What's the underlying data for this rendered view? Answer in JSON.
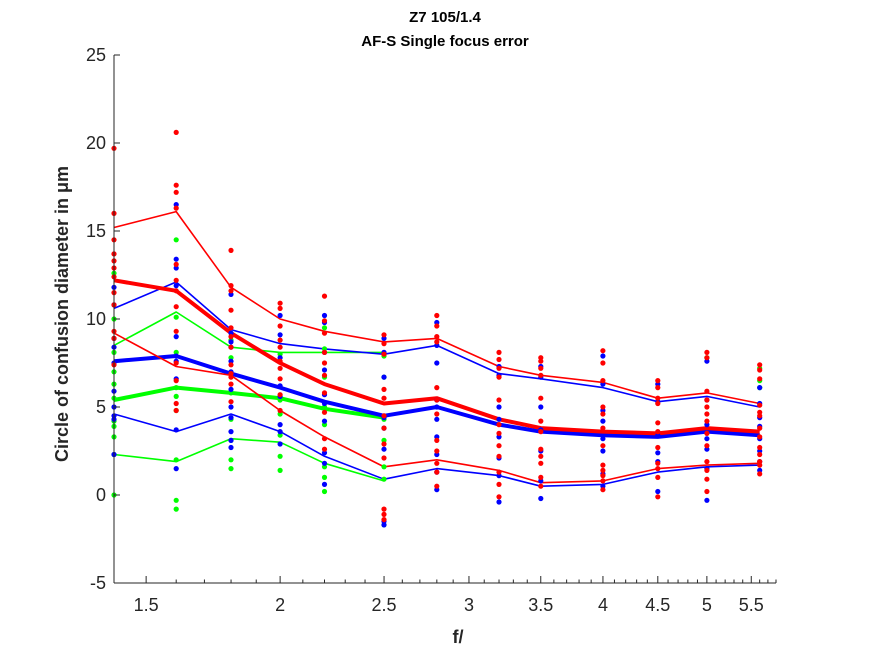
{
  "chart_data": {
    "type": "line",
    "title": "Z7 105/1.4",
    "subtitle": "AF-S Single focus error",
    "xlabel": "f/",
    "ylabel": "Circle of confusion diameter in μm",
    "xscale": "log",
    "xlim": [
      1.4,
      5.8
    ],
    "ylim": [
      -5,
      25
    ],
    "xticks": [
      "1.5",
      "2",
      "2.5",
      "3",
      "3.5",
      "4",
      "4.5",
      "5",
      "5.5"
    ],
    "yticks": [
      "-5",
      "0",
      "5",
      "10",
      "15",
      "20",
      "25"
    ],
    "colors": {
      "red": "#ff0000",
      "blue": "#0000ff",
      "green": "#00ff00"
    },
    "x": [
      1.4,
      1.6,
      1.8,
      2.0,
      2.2,
      2.5,
      2.8,
      3.2,
      3.5,
      4.0,
      4.5,
      5.0,
      5.6
    ],
    "series": [
      {
        "color": "red",
        "style": "mean",
        "values": [
          12.2,
          11.6,
          9.2,
          7.5,
          6.3,
          5.2,
          5.5,
          4.3,
          3.8,
          3.6,
          3.5,
          3.8,
          3.6
        ]
      },
      {
        "color": "red",
        "style": "upper",
        "values": [
          15.2,
          16.1,
          11.8,
          10.0,
          9.3,
          8.7,
          8.9,
          7.3,
          6.8,
          6.4,
          5.5,
          5.8,
          5.2
        ]
      },
      {
        "color": "red",
        "style": "lower",
        "values": [
          9.2,
          7.3,
          6.8,
          4.8,
          3.3,
          1.6,
          2.0,
          1.4,
          0.7,
          0.8,
          1.5,
          1.7,
          1.8
        ]
      },
      {
        "color": "blue",
        "style": "mean",
        "values": [
          7.6,
          7.9,
          6.9,
          6.1,
          5.3,
          4.5,
          5.0,
          4.0,
          3.6,
          3.4,
          3.3,
          3.6,
          3.4
        ]
      },
      {
        "color": "blue",
        "style": "upper",
        "values": [
          10.6,
          12.1,
          9.4,
          8.6,
          8.3,
          8.0,
          8.5,
          6.9,
          6.6,
          6.1,
          5.3,
          5.6,
          5.0
        ]
      },
      {
        "color": "blue",
        "style": "lower",
        "values": [
          4.6,
          3.6,
          4.6,
          3.6,
          2.2,
          0.9,
          1.5,
          1.1,
          0.5,
          0.6,
          1.3,
          1.6,
          1.7
        ]
      },
      {
        "color": "green",
        "style": "mean",
        "values": [
          5.4,
          6.1,
          5.8,
          5.5,
          4.9,
          4.4,
          null,
          null,
          null,
          null,
          null,
          null,
          null
        ]
      },
      {
        "color": "green",
        "style": "upper",
        "values": [
          8.5,
          10.4,
          8.4,
          8.1,
          8.1,
          8.1,
          null,
          null,
          null,
          null,
          null,
          null,
          null
        ]
      },
      {
        "color": "green",
        "style": "lower",
        "values": [
          2.3,
          1.9,
          3.2,
          3.0,
          1.8,
          0.8,
          null,
          null,
          null,
          null,
          null,
          null,
          null
        ]
      }
    ],
    "points": [
      {
        "x": 1.4,
        "red": [
          19.7,
          16.0,
          14.5,
          13.7,
          13.3,
          12.9,
          12.4,
          11.5,
          10.8,
          9.3,
          8.9,
          7.4
        ],
        "blue": [
          11.8,
          10.8,
          8.9,
          8.4,
          7.5,
          5.9,
          5.0,
          4.5,
          4.3,
          2.3
        ],
        "green": [
          12.6,
          10.0,
          8.1,
          7.0,
          6.3,
          5.5,
          4.2,
          3.9,
          3.3,
          2.3,
          0.0
        ]
      },
      {
        "x": 1.6,
        "red": [
          20.6,
          17.6,
          17.2,
          16.3,
          13.1,
          12.2,
          11.6,
          10.7,
          9.3,
          7.5,
          6.5,
          5.2,
          4.8
        ],
        "blue": [
          16.5,
          13.4,
          12.9,
          11.9,
          9.0,
          7.9,
          7.6,
          6.6,
          3.7,
          1.5
        ],
        "green": [
          14.5,
          10.1,
          8.1,
          6.1,
          5.6,
          4.8,
          2.0,
          -0.3,
          -0.8
        ]
      },
      {
        "x": 1.8,
        "red": [
          13.9,
          11.9,
          11.6,
          10.5,
          9.5,
          9.0,
          8.4,
          7.4,
          6.9,
          6.7,
          6.3,
          5.3
        ],
        "blue": [
          11.4,
          9.2,
          8.7,
          8.4,
          7.6,
          7.0,
          6.0,
          5.0,
          4.4,
          3.6,
          3.1,
          2.7
        ],
        "green": [
          8.8,
          7.8,
          5.8,
          4.3,
          3.1,
          2.0,
          1.5
        ]
      },
      {
        "x": 2.0,
        "red": [
          10.9,
          10.6,
          9.6,
          8.8,
          8.4,
          7.6,
          7.2,
          6.6,
          5.7,
          4.8
        ],
        "blue": [
          10.2,
          9.1,
          7.8,
          6.2,
          5.6,
          4.0,
          3.6,
          2.9
        ],
        "green": [
          8.0,
          5.4,
          4.6,
          3.4,
          2.2,
          1.4
        ]
      },
      {
        "x": 2.2,
        "red": [
          11.3,
          9.9,
          9.2,
          8.1,
          7.5,
          6.8,
          5.8,
          4.7,
          3.2,
          2.6
        ],
        "blue": [
          10.2,
          9.8,
          8.1,
          7.1,
          5.7,
          5.2,
          4.2,
          2.4,
          1.8,
          0.6
        ],
        "green": [
          9.5,
          8.3,
          6.7,
          5.0,
          4.0,
          1.6,
          1.0,
          0.2
        ]
      },
      {
        "x": 2.5,
        "red": [
          9.1,
          8.6,
          8.0,
          6.0,
          5.5,
          4.5,
          3.8,
          2.9,
          2.1,
          -0.8,
          -1.1,
          -1.4
        ],
        "blue": [
          8.9,
          8.1,
          6.7,
          4.5,
          4.4,
          3.8,
          2.6,
          -1.5,
          -1.7
        ],
        "green": [
          7.9,
          6.7,
          4.3,
          3.1,
          1.6,
          0.9,
          -1.7
        ]
      },
      {
        "x": 2.8,
        "red": [
          10.2,
          9.6,
          9.0,
          8.7,
          6.1,
          5.4,
          4.6,
          3.1,
          2.5,
          1.8,
          1.3,
          0.5
        ],
        "blue": [
          9.8,
          8.5,
          7.5,
          5.4,
          5.0,
          4.3,
          3.3,
          2.3,
          1.3,
          0.3
        ]
      },
      {
        "x": 3.2,
        "red": [
          8.1,
          7.7,
          7.2,
          6.7,
          5.4,
          4.0,
          3.5,
          2.8,
          2.2,
          1.3,
          0.6,
          -0.1
        ],
        "blue": [
          7.3,
          6.8,
          5.0,
          4.3,
          3.3,
          2.1,
          1.1,
          -0.4
        ]
      },
      {
        "x": 3.5,
        "red": [
          7.8,
          7.6,
          7.2,
          6.8,
          5.5,
          4.2,
          3.6,
          2.6,
          2.2,
          1.8,
          1.0,
          0.5
        ],
        "blue": [
          7.3,
          6.7,
          5.0,
          3.7,
          2.5,
          0.8,
          -0.2
        ]
      },
      {
        "x": 4.0,
        "red": [
          8.2,
          7.5,
          6.5,
          5.0,
          4.6,
          3.8,
          2.8,
          1.7,
          1.4,
          1.1,
          0.8,
          0.3
        ],
        "blue": [
          7.9,
          6.3,
          4.8,
          4.2,
          3.2,
          2.5,
          1.2,
          0.5
        ]
      },
      {
        "x": 4.5,
        "red": [
          6.5,
          6.1,
          5.5,
          5.2,
          4.1,
          3.6,
          2.7,
          1.8,
          1.5,
          1.0,
          -0.1
        ],
        "blue": [
          6.3,
          5.3,
          3.4,
          2.4,
          1.9,
          0.2
        ]
      },
      {
        "x": 5.0,
        "red": [
          8.1,
          7.8,
          5.9,
          5.4,
          5.0,
          4.6,
          4.2,
          3.5,
          2.8,
          1.9,
          1.4,
          0.9,
          0.2
        ],
        "blue": [
          7.6,
          5.4,
          4.0,
          3.2,
          2.6,
          1.5,
          -0.3
        ],
        "green": [
          7.8
        ]
      },
      {
        "x": 5.6,
        "red": [
          7.4,
          7.1,
          6.6,
          5.1,
          4.7,
          4.5,
          3.8,
          3.3,
          2.7,
          2.3,
          1.9,
          1.7,
          1.2
        ],
        "blue": [
          6.1,
          5.2,
          4.4,
          3.9,
          3.2,
          2.5,
          1.9,
          1.4
        ],
        "green": [
          7.2,
          6.5,
          6.1
        ]
      }
    ]
  }
}
